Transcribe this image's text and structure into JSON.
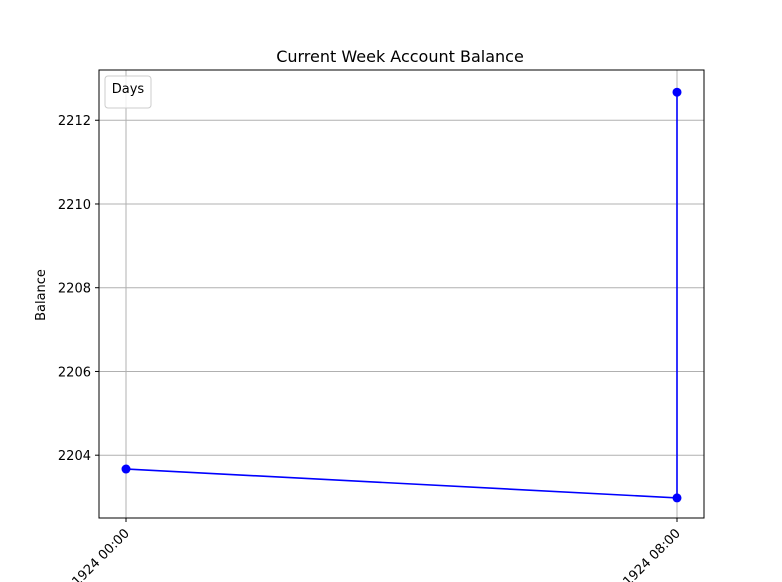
{
  "chart_data": {
    "type": "line",
    "title": "Current Week Account Balance",
    "xlabel": "",
    "ylabel": "Balance",
    "x_tick_labels": [
      "1924 00:00",
      "1924 08:00"
    ],
    "series": [
      {
        "color": "#0000ff",
        "marker": "circle",
        "points": [
          {
            "x": "1924 00:00",
            "y": 2203.67
          },
          {
            "x": "1924 08:00",
            "y": 2202.98
          },
          {
            "x": "1924 08:00",
            "y": 2212.67
          }
        ]
      }
    ],
    "ylim": [
      2202.5,
      2213.2
    ],
    "yticks": [
      2204,
      2206,
      2208,
      2210,
      2212
    ],
    "grid": true,
    "legend": {
      "title": "Days",
      "position": "upper-left"
    }
  }
}
